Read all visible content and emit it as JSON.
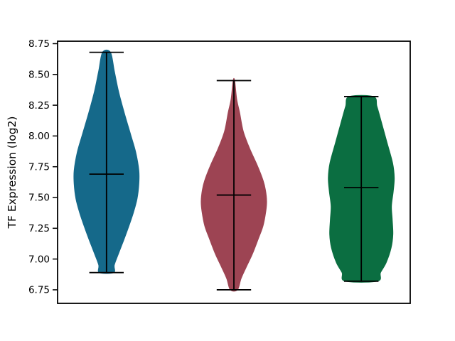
{
  "figure": {
    "background": "#ffffff",
    "frame_color": "#000000"
  },
  "chart_data": {
    "type": "violin",
    "title": "",
    "xlabel": "",
    "ylabel": "TF Expression (log2)",
    "ylim": [
      6.64,
      8.77
    ],
    "xlim": [
      0.616,
      3.384
    ],
    "grid": false,
    "legend": "none",
    "yticks": [
      {
        "value": 6.75,
        "label": "6.75"
      },
      {
        "value": 7.0,
        "label": "7.00"
      },
      {
        "value": 7.25,
        "label": "7.25"
      },
      {
        "value": 7.5,
        "label": "7.50"
      },
      {
        "value": 7.75,
        "label": "7.75"
      },
      {
        "value": 8.0,
        "label": "8.00"
      },
      {
        "value": 8.25,
        "label": "8.25"
      },
      {
        "value": 8.5,
        "label": "8.50"
      },
      {
        "value": 8.75,
        "label": "8.75"
      }
    ],
    "xticks": [],
    "inner_line_color": "#000000",
    "bar_halfwidth": 0.135,
    "series": [
      {
        "name": "group-1",
        "position": 1,
        "color": "#15698a",
        "min": 6.89,
        "max": 8.68,
        "median": 7.69,
        "profile": [
          [
            8.68,
            0.031
          ],
          [
            8.53,
            0.061
          ],
          [
            8.36,
            0.095
          ],
          [
            8.19,
            0.139
          ],
          [
            8.01,
            0.19
          ],
          [
            7.87,
            0.229
          ],
          [
            7.72,
            0.254
          ],
          [
            7.61,
            0.254
          ],
          [
            7.49,
            0.24
          ],
          [
            7.38,
            0.212
          ],
          [
            7.26,
            0.173
          ],
          [
            7.15,
            0.134
          ],
          [
            7.03,
            0.089
          ],
          [
            6.95,
            0.061
          ],
          [
            6.89,
            0.056
          ]
        ]
      },
      {
        "name": "group-2",
        "position": 2,
        "color": "#9d4453",
        "min": 6.75,
        "max": 8.45,
        "median": 7.52,
        "profile": [
          [
            8.45,
            0.006
          ],
          [
            8.3,
            0.022
          ],
          [
            8.19,
            0.045
          ],
          [
            8.04,
            0.073
          ],
          [
            7.9,
            0.123
          ],
          [
            7.76,
            0.184
          ],
          [
            7.64,
            0.229
          ],
          [
            7.56,
            0.248
          ],
          [
            7.47,
            0.257
          ],
          [
            7.39,
            0.251
          ],
          [
            7.27,
            0.229
          ],
          [
            7.16,
            0.19
          ],
          [
            7.04,
            0.145
          ],
          [
            6.93,
            0.095
          ],
          [
            6.84,
            0.056
          ],
          [
            6.75,
            0.028
          ]
        ]
      },
      {
        "name": "group-3",
        "position": 3,
        "color": "#0b6e41",
        "min": 6.82,
        "max": 8.32,
        "median": 7.58,
        "profile": [
          [
            8.32,
            0.095
          ],
          [
            8.24,
            0.123
          ],
          [
            8.12,
            0.156
          ],
          [
            7.95,
            0.201
          ],
          [
            7.78,
            0.246
          ],
          [
            7.66,
            0.259
          ],
          [
            7.55,
            0.251
          ],
          [
            7.43,
            0.237
          ],
          [
            7.32,
            0.243
          ],
          [
            7.2,
            0.248
          ],
          [
            7.09,
            0.234
          ],
          [
            6.97,
            0.195
          ],
          [
            6.89,
            0.151
          ],
          [
            6.82,
            0.126
          ]
        ]
      }
    ]
  }
}
